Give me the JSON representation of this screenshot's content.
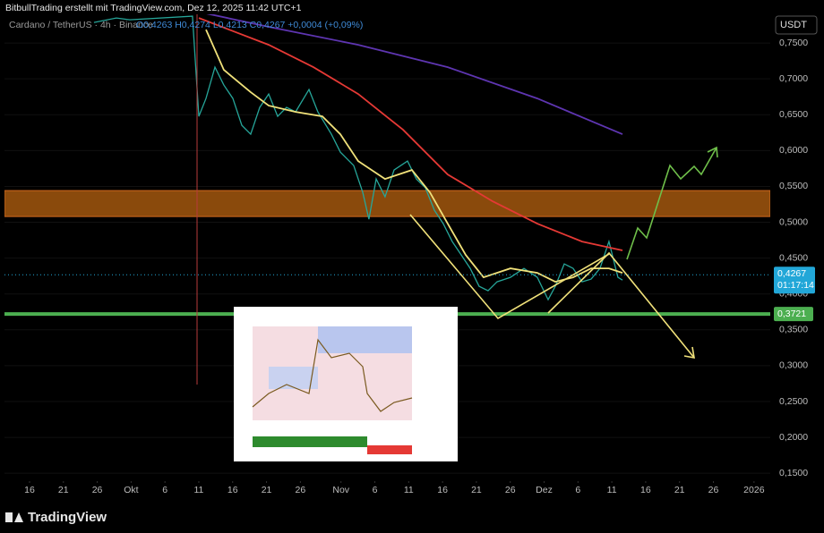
{
  "header": {
    "credit": "BitbullTrading erstellt mit TradingView.com, Dez 12, 2025 11:42 UTC+1",
    "footer_logo": "TradingView"
  },
  "chart_data": {
    "type": "line",
    "title": "Cardano / TetherUS · 4h · Binance",
    "subtitle": "O0,4263 H0,4274 L0,4213 C0,4267 +0,0004 (+0,09%)",
    "y_axis_label": "USDT",
    "xlim": [
      -3.7,
      109.4
    ],
    "ylim": [
      0.139,
      0.79
    ],
    "xticks": [
      {
        "value": 0,
        "label": "16"
      },
      {
        "value": 5,
        "label": "21"
      },
      {
        "value": 10,
        "label": "26"
      },
      {
        "value": 15,
        "label": "Okt"
      },
      {
        "value": 20,
        "label": "6"
      },
      {
        "value": 25,
        "label": "11"
      },
      {
        "value": 30,
        "label": "16"
      },
      {
        "value": 35,
        "label": "21"
      },
      {
        "value": 40,
        "label": "26"
      },
      {
        "value": 46,
        "label": "Nov"
      },
      {
        "value": 51,
        "label": "6"
      },
      {
        "value": 56,
        "label": "11"
      },
      {
        "value": 61,
        "label": "16"
      },
      {
        "value": 66,
        "label": "21"
      },
      {
        "value": 71,
        "label": "26"
      },
      {
        "value": 76,
        "label": "Dez"
      },
      {
        "value": 81,
        "label": "6"
      },
      {
        "value": 86,
        "label": "11"
      },
      {
        "value": 91,
        "label": "16"
      },
      {
        "value": 96,
        "label": "21"
      },
      {
        "value": 101,
        "label": "26"
      },
      {
        "value": 107,
        "label": "2026"
      }
    ],
    "yticks": [
      {
        "value": 0.75,
        "label": "0,7500"
      },
      {
        "value": 0.7,
        "label": "0,7000"
      },
      {
        "value": 0.65,
        "label": "0,6500"
      },
      {
        "value": 0.6,
        "label": "0,6000"
      },
      {
        "value": 0.55,
        "label": "0,5500"
      },
      {
        "value": 0.5,
        "label": "0,5000"
      },
      {
        "value": 0.45,
        "label": "0,4500"
      },
      {
        "value": 0.4,
        "label": "0,4000"
      },
      {
        "value": 0.35,
        "label": "0,3500"
      },
      {
        "value": 0.3,
        "label": "0,3000"
      },
      {
        "value": 0.25,
        "label": "0,2500"
      },
      {
        "value": 0.2,
        "label": "0,2000"
      },
      {
        "value": 0.15,
        "label": "0,1500"
      }
    ],
    "series": [
      {
        "color": "#26a69a",
        "x": [
          9.52,
          12.83,
          14.81,
          24.07,
          25.0,
          26.06,
          27.38,
          28.7,
          30.03,
          31.35,
          32.67,
          34.0,
          35.32,
          36.64,
          37.96,
          39.29,
          41.27,
          42.59,
          44.58,
          45.9,
          47.88,
          49.21,
          50.13,
          51.19,
          52.51,
          53.84,
          55.82,
          57.14,
          58.47,
          59.79,
          61.11,
          62.43,
          63.76,
          65.08,
          66.4,
          67.72,
          69.05,
          71.03,
          73.02,
          75.0,
          76.59,
          77.65,
          78.97,
          80.29,
          81.61,
          82.94,
          84.26,
          85.58,
          86.9,
          87.57
        ],
        "values": [
          0.7787,
          0.7849,
          0.7824,
          0.7874,
          0.6477,
          0.6727,
          0.7163,
          0.6914,
          0.6727,
          0.6352,
          0.6227,
          0.6602,
          0.6789,
          0.6477,
          0.6602,
          0.6539,
          0.6851,
          0.6539,
          0.6227,
          0.5978,
          0.5791,
          0.5417,
          0.5043,
          0.5604,
          0.5355,
          0.5729,
          0.5853,
          0.5604,
          0.5479,
          0.5168,
          0.4981,
          0.4731,
          0.4544,
          0.4357,
          0.4108,
          0.4045,
          0.417,
          0.4232,
          0.4357,
          0.4232,
          0.392,
          0.4108,
          0.4419,
          0.4357,
          0.417,
          0.4207,
          0.4357,
          0.4731,
          0.4232,
          0.4194
        ]
      },
      {
        "color": "#f0e17a",
        "x": [
          26.06,
          28.7,
          32.67,
          35.32,
          39.29,
          43.25,
          45.9,
          48.54,
          52.51,
          56.48,
          59.13,
          61.77,
          64.42,
          67.06,
          71.03,
          75.0,
          77.65,
          80.29,
          82.94,
          85.58,
          87.57
        ],
        "values": [
          0.7687,
          0.7126,
          0.6814,
          0.6627,
          0.6539,
          0.6477,
          0.6227,
          0.5853,
          0.5604,
          0.5729,
          0.5417,
          0.4981,
          0.4544,
          0.4232,
          0.4357,
          0.4295,
          0.417,
          0.4232,
          0.4357,
          0.4357,
          0.4295
        ]
      },
      {
        "color": "#e53935",
        "x": [
          25.0,
          35.32,
          41.93,
          48.54,
          55.16,
          61.77,
          68.39,
          75.0,
          81.61,
          87.57
        ],
        "values": [
          0.7849,
          0.7475,
          0.7163,
          0.6789,
          0.629,
          0.5666,
          0.5292,
          0.498,
          0.4731,
          0.4607
        ]
      },
      {
        "color": "#5e35b1",
        "x": [
          26.06,
          35.32,
          48.54,
          61.77,
          75.0,
          87.57
        ],
        "values": [
          0.7912,
          0.7725,
          0.7475,
          0.7163,
          0.6727,
          0.6227
        ]
      }
    ],
    "zones": [
      {
        "low": 0.508,
        "high": 0.5442,
        "color": "#8a4a0c"
      }
    ],
    "hlines": [
      {
        "value": 0.3721,
        "label": "0,3721",
        "color": "#4caf50"
      }
    ],
    "last_price": {
      "value": 0.4267,
      "label": "0,4267",
      "countdown": "01:17:14",
      "color": "#22a7d8"
    }
  }
}
